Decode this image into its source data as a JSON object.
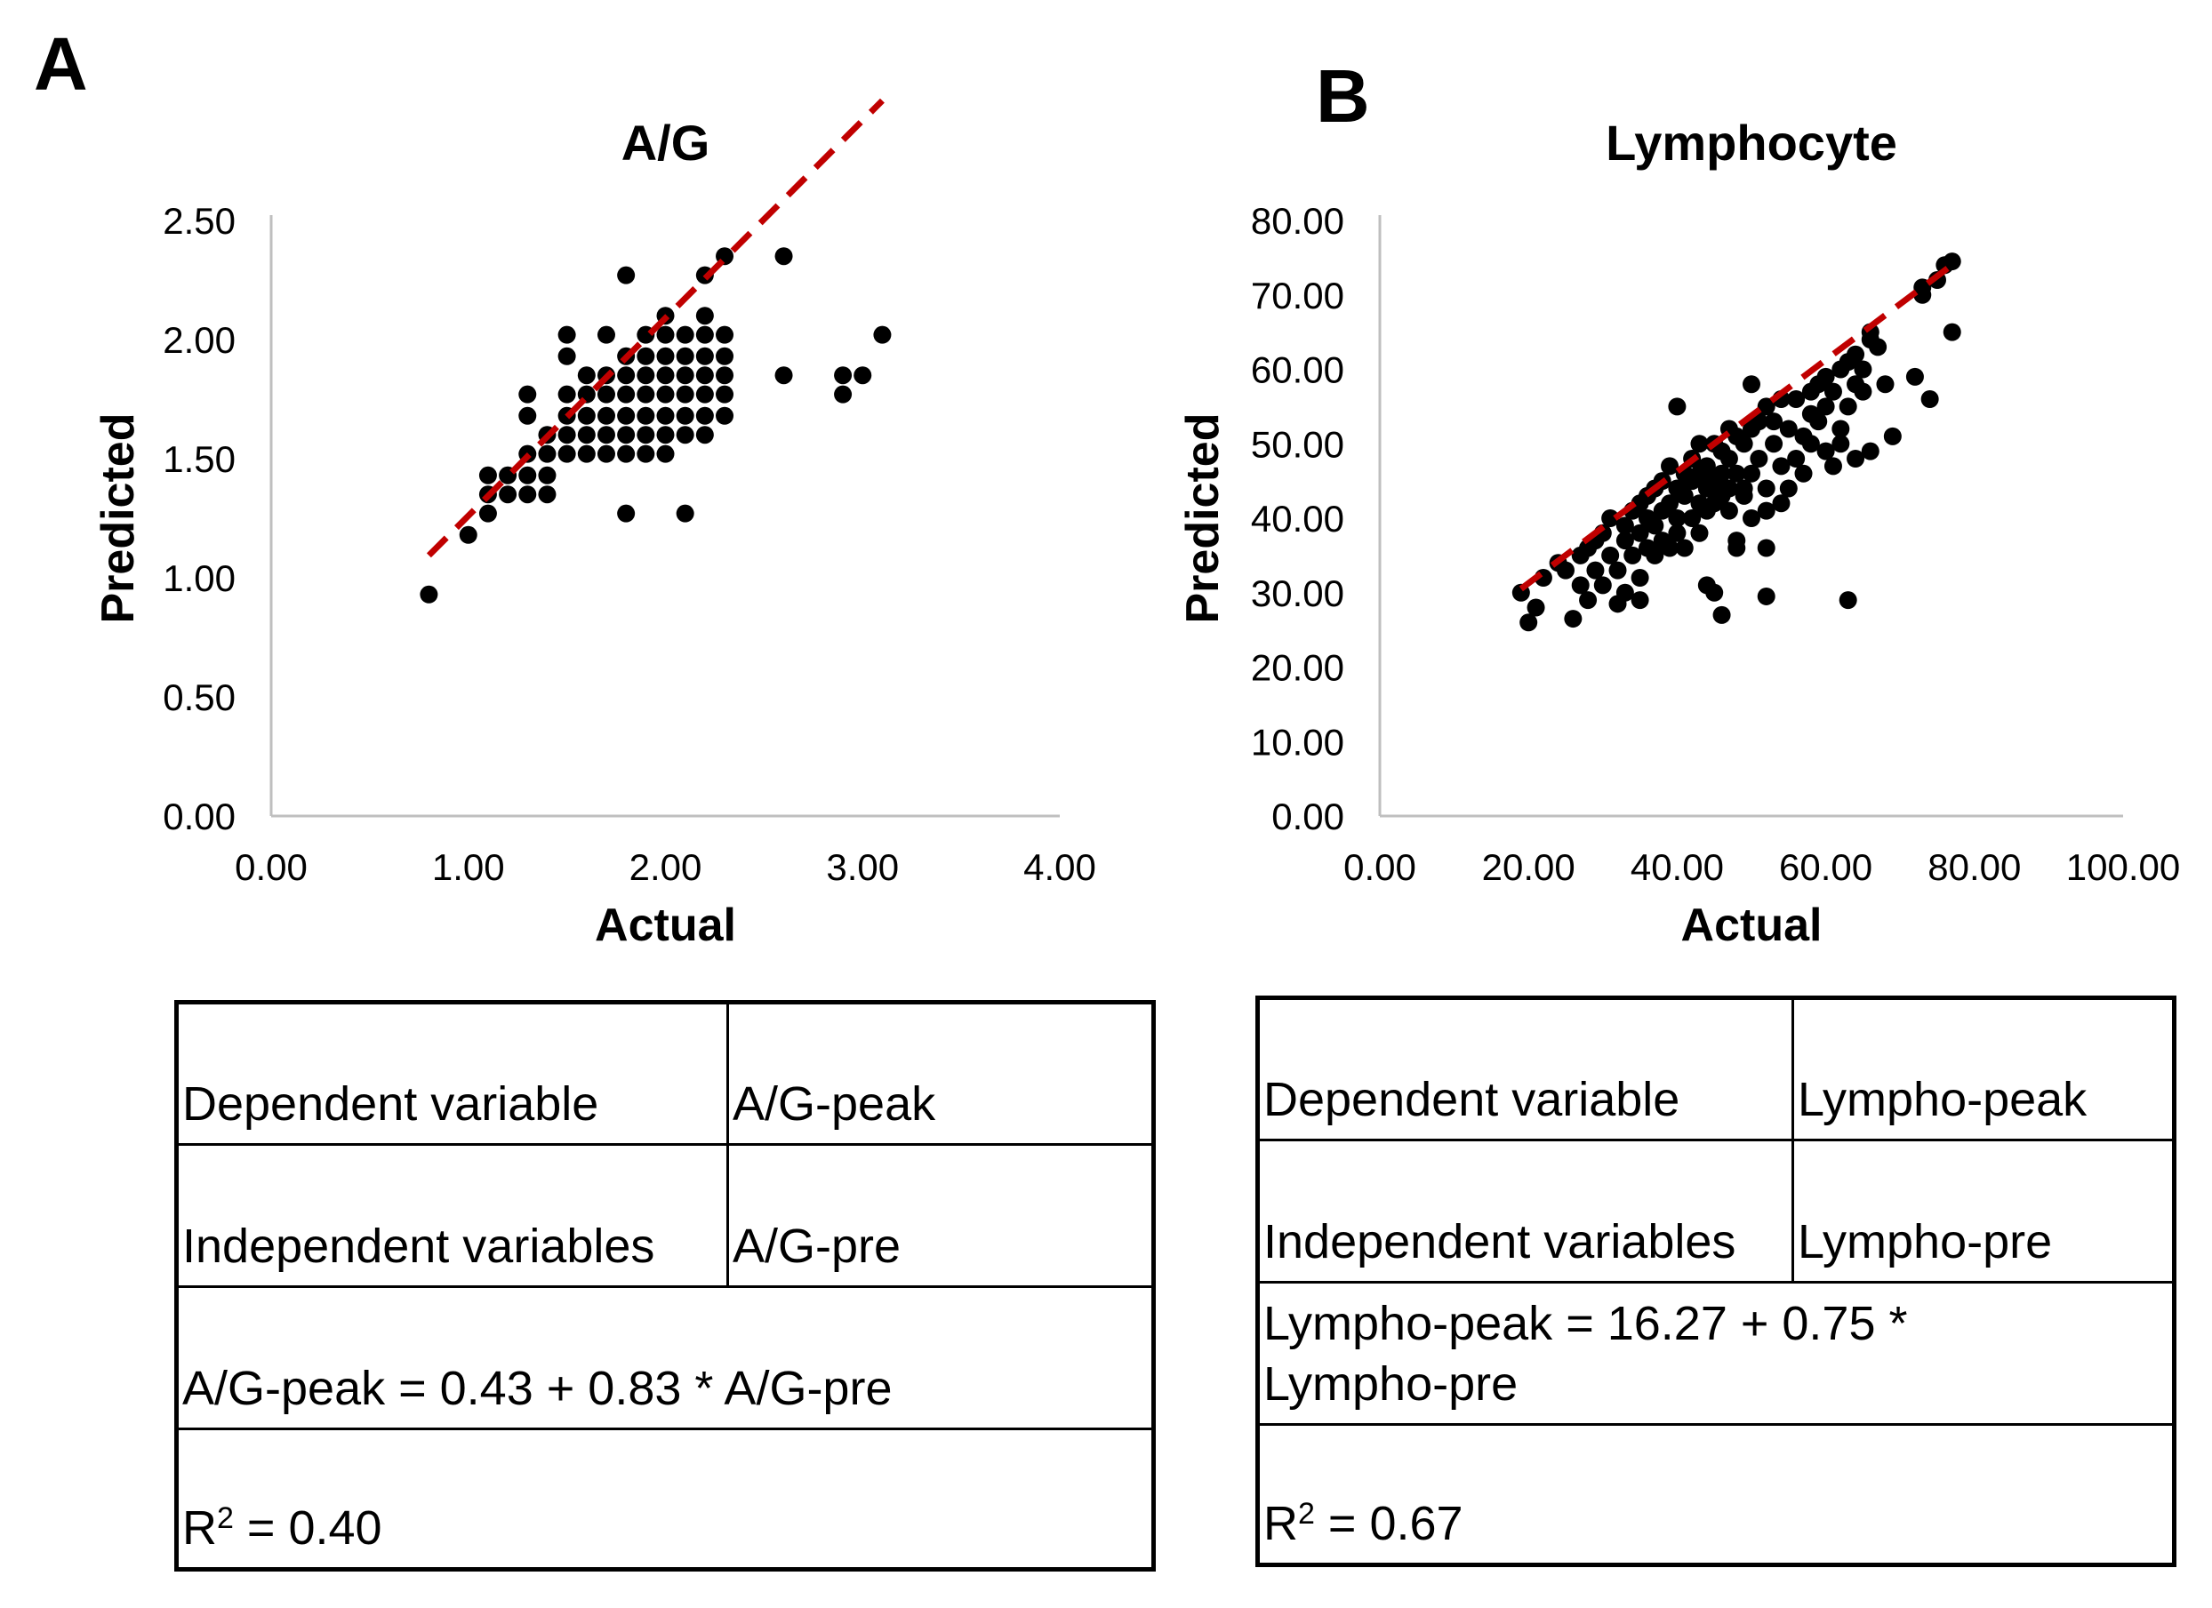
{
  "panels": {
    "a": {
      "letter": "A"
    },
    "b": {
      "letter": "B"
    }
  },
  "chart_data": [
    {
      "type": "scatter",
      "title": "A/G",
      "xlabel": "Actual",
      "ylabel": "Predicted",
      "xlim": [
        0,
        4
      ],
      "ylim": [
        0,
        2.5
      ],
      "xticks": [
        "0.00",
        "1.00",
        "2.00",
        "3.00",
        "4.00"
      ],
      "yticks": [
        "0.00",
        "0.50",
        "1.00",
        "1.50",
        "2.00",
        "2.50"
      ],
      "grid": false,
      "trendline": {
        "intercept": 0.43,
        "slope": 0.83,
        "x_range": [
          0.8,
          3.1
        ],
        "color": "#c00000",
        "style": "dashed"
      },
      "point_color": "#000000",
      "points": [
        [
          0.8,
          0.93
        ],
        [
          1.0,
          1.18
        ],
        [
          1.1,
          1.27
        ],
        [
          1.1,
          1.35
        ],
        [
          1.1,
          1.43
        ],
        [
          1.2,
          1.35
        ],
        [
          1.2,
          1.43
        ],
        [
          1.3,
          1.35
        ],
        [
          1.3,
          1.43
        ],
        [
          1.3,
          1.52
        ],
        [
          1.3,
          1.68
        ],
        [
          1.3,
          1.77
        ],
        [
          1.4,
          1.35
        ],
        [
          1.4,
          1.43
        ],
        [
          1.4,
          1.52
        ],
        [
          1.4,
          1.6
        ],
        [
          1.5,
          1.52
        ],
        [
          1.5,
          1.6
        ],
        [
          1.5,
          1.68
        ],
        [
          1.5,
          1.77
        ],
        [
          1.5,
          1.93
        ],
        [
          1.5,
          2.02
        ],
        [
          1.6,
          1.52
        ],
        [
          1.6,
          1.6
        ],
        [
          1.6,
          1.68
        ],
        [
          1.6,
          1.77
        ],
        [
          1.6,
          1.85
        ],
        [
          1.7,
          1.52
        ],
        [
          1.7,
          1.6
        ],
        [
          1.7,
          1.68
        ],
        [
          1.7,
          1.77
        ],
        [
          1.7,
          1.85
        ],
        [
          1.7,
          2.02
        ],
        [
          1.8,
          1.27
        ],
        [
          1.8,
          1.52
        ],
        [
          1.8,
          1.6
        ],
        [
          1.8,
          1.68
        ],
        [
          1.8,
          1.77
        ],
        [
          1.8,
          1.85
        ],
        [
          1.8,
          1.93
        ],
        [
          1.8,
          2.27
        ],
        [
          1.9,
          1.52
        ],
        [
          1.9,
          1.6
        ],
        [
          1.9,
          1.68
        ],
        [
          1.9,
          1.77
        ],
        [
          1.9,
          1.85
        ],
        [
          1.9,
          1.93
        ],
        [
          1.9,
          2.02
        ],
        [
          2.0,
          1.52
        ],
        [
          2.0,
          1.6
        ],
        [
          2.0,
          1.68
        ],
        [
          2.0,
          1.77
        ],
        [
          2.0,
          1.85
        ],
        [
          2.0,
          1.93
        ],
        [
          2.0,
          2.02
        ],
        [
          2.0,
          2.1
        ],
        [
          2.1,
          1.27
        ],
        [
          2.1,
          1.6
        ],
        [
          2.1,
          1.68
        ],
        [
          2.1,
          1.77
        ],
        [
          2.1,
          1.85
        ],
        [
          2.1,
          1.93
        ],
        [
          2.1,
          2.02
        ],
        [
          2.2,
          1.6
        ],
        [
          2.2,
          1.68
        ],
        [
          2.2,
          1.77
        ],
        [
          2.2,
          1.85
        ],
        [
          2.2,
          1.93
        ],
        [
          2.2,
          2.02
        ],
        [
          2.2,
          2.1
        ],
        [
          2.2,
          2.27
        ],
        [
          2.3,
          1.68
        ],
        [
          2.3,
          1.77
        ],
        [
          2.3,
          1.85
        ],
        [
          2.3,
          1.93
        ],
        [
          2.3,
          2.02
        ],
        [
          2.3,
          2.35
        ],
        [
          2.6,
          1.85
        ],
        [
          2.6,
          2.35
        ],
        [
          2.9,
          1.77
        ],
        [
          2.9,
          1.85
        ],
        [
          3.0,
          1.85
        ],
        [
          3.1,
          2.02
        ]
      ]
    },
    {
      "type": "scatter",
      "title": "Lymphocyte",
      "xlabel": "Actual",
      "ylabel": "Predicted",
      "xlim": [
        0,
        100
      ],
      "ylim": [
        0,
        80
      ],
      "xticks": [
        "0.00",
        "20.00",
        "40.00",
        "60.00",
        "80.00",
        "100.00"
      ],
      "yticks": [
        "0.00",
        "10.00",
        "20.00",
        "30.00",
        "40.00",
        "50.00",
        "60.00",
        "70.00",
        "80.00"
      ],
      "grid": false,
      "trendline": {
        "intercept": 16.27,
        "slope": 0.75,
        "x_range": [
          19,
          77
        ],
        "color": "#c00000",
        "style": "dashed"
      },
      "point_color": "#000000",
      "points": [
        [
          19,
          30
        ],
        [
          20,
          26
        ],
        [
          21,
          28
        ],
        [
          22,
          32
        ],
        [
          24,
          34
        ],
        [
          25,
          33
        ],
        [
          26,
          26.5
        ],
        [
          27,
          35
        ],
        [
          27,
          31
        ],
        [
          28,
          29
        ],
        [
          28,
          36
        ],
        [
          29,
          33
        ],
        [
          29,
          37
        ],
        [
          30,
          31
        ],
        [
          30,
          38
        ],
        [
          31,
          35
        ],
        [
          31,
          40
        ],
        [
          32,
          33
        ],
        [
          32,
          28.5
        ],
        [
          33,
          37
        ],
        [
          33,
          39
        ],
        [
          33,
          30
        ],
        [
          34,
          35
        ],
        [
          34,
          41
        ],
        [
          35,
          38
        ],
        [
          35,
          42
        ],
        [
          35,
          32
        ],
        [
          35,
          29
        ],
        [
          36,
          36
        ],
        [
          36,
          40
        ],
        [
          36,
          43
        ],
        [
          37,
          35
        ],
        [
          37,
          44
        ],
        [
          37,
          39
        ],
        [
          38,
          41
        ],
        [
          38,
          37
        ],
        [
          38,
          45
        ],
        [
          39,
          36
        ],
        [
          39,
          42
        ],
        [
          39,
          47
        ],
        [
          40,
          40
        ],
        [
          40,
          38
        ],
        [
          40,
          44
        ],
        [
          40,
          55
        ],
        [
          41,
          43
        ],
        [
          41,
          36
        ],
        [
          41,
          46
        ],
        [
          42,
          40
        ],
        [
          42,
          45
        ],
        [
          42,
          48
        ],
        [
          43,
          42
        ],
        [
          43,
          38
        ],
        [
          43,
          46
        ],
        [
          43,
          50
        ],
        [
          44,
          44
        ],
        [
          44,
          41
        ],
        [
          44,
          31
        ],
        [
          44,
          47
        ],
        [
          45,
          30
        ],
        [
          45,
          45
        ],
        [
          45,
          42
        ],
        [
          45,
          50
        ],
        [
          46,
          27
        ],
        [
          46,
          46
        ],
        [
          46,
          43
        ],
        [
          46,
          49
        ],
        [
          47,
          48
        ],
        [
          47,
          41
        ],
        [
          47,
          44
        ],
        [
          47,
          52
        ],
        [
          48,
          37
        ],
        [
          48,
          36
        ],
        [
          48,
          46
        ],
        [
          48,
          51
        ],
        [
          49,
          43
        ],
        [
          49,
          44
        ],
        [
          49,
          50
        ],
        [
          50,
          52
        ],
        [
          50,
          46
        ],
        [
          50,
          58
        ],
        [
          50,
          40
        ],
        [
          51,
          48
        ],
        [
          51,
          53
        ],
        [
          52,
          44
        ],
        [
          52,
          41
        ],
        [
          52,
          36
        ],
        [
          52,
          55
        ],
        [
          52,
          29.5
        ],
        [
          53,
          50
        ],
        [
          53,
          53
        ],
        [
          54,
          47
        ],
        [
          54,
          42
        ],
        [
          54,
          56
        ],
        [
          55,
          44
        ],
        [
          55,
          52
        ],
        [
          56,
          48
        ],
        [
          56,
          56
        ],
        [
          57,
          51
        ],
        [
          57,
          46
        ],
        [
          58,
          54
        ],
        [
          58,
          50
        ],
        [
          58,
          57
        ],
        [
          59,
          53
        ],
        [
          59,
          58
        ],
        [
          60,
          55
        ],
        [
          60,
          49
        ],
        [
          60,
          59
        ],
        [
          61,
          47
        ],
        [
          61,
          57
        ],
        [
          62,
          60
        ],
        [
          62,
          52
        ],
        [
          62,
          50
        ],
        [
          63,
          61
        ],
        [
          63,
          55
        ],
        [
          63,
          29
        ],
        [
          64,
          58
        ],
        [
          64,
          48
        ],
        [
          64,
          62
        ],
        [
          65,
          60
        ],
        [
          65,
          57
        ],
        [
          66,
          49
        ],
        [
          66,
          64
        ],
        [
          66,
          65
        ],
        [
          67,
          63
        ],
        [
          68,
          58
        ],
        [
          69,
          51
        ],
        [
          72,
          59
        ],
        [
          73,
          70
        ],
        [
          73,
          71
        ],
        [
          74,
          56
        ],
        [
          75,
          72
        ],
        [
          76,
          74
        ],
        [
          77,
          65
        ],
        [
          77,
          74.5
        ]
      ]
    }
  ],
  "tables": {
    "a": {
      "dependent_label": "Dependent variable",
      "dependent_value": "A/G-peak",
      "independent_label": "Independent variables",
      "independent_value": "A/G-pre",
      "equation": "A/G-peak =  0.43 + 0.83 * A/G-pre",
      "r2_prefix": "R",
      "r2_sup": "2",
      "r2_value": " = 0.40"
    },
    "b": {
      "dependent_label": "Dependent variable",
      "dependent_value": "Lympho-peak",
      "independent_label": "Independent variables",
      "independent_value": "Lympho-pre",
      "equation_line1": "Lympho-peak =  16.27 + 0.75 *",
      "equation_line2": "Lympho-pre",
      "r2_prefix": "R",
      "r2_sup": "2",
      "r2_value": " = 0.67"
    }
  }
}
